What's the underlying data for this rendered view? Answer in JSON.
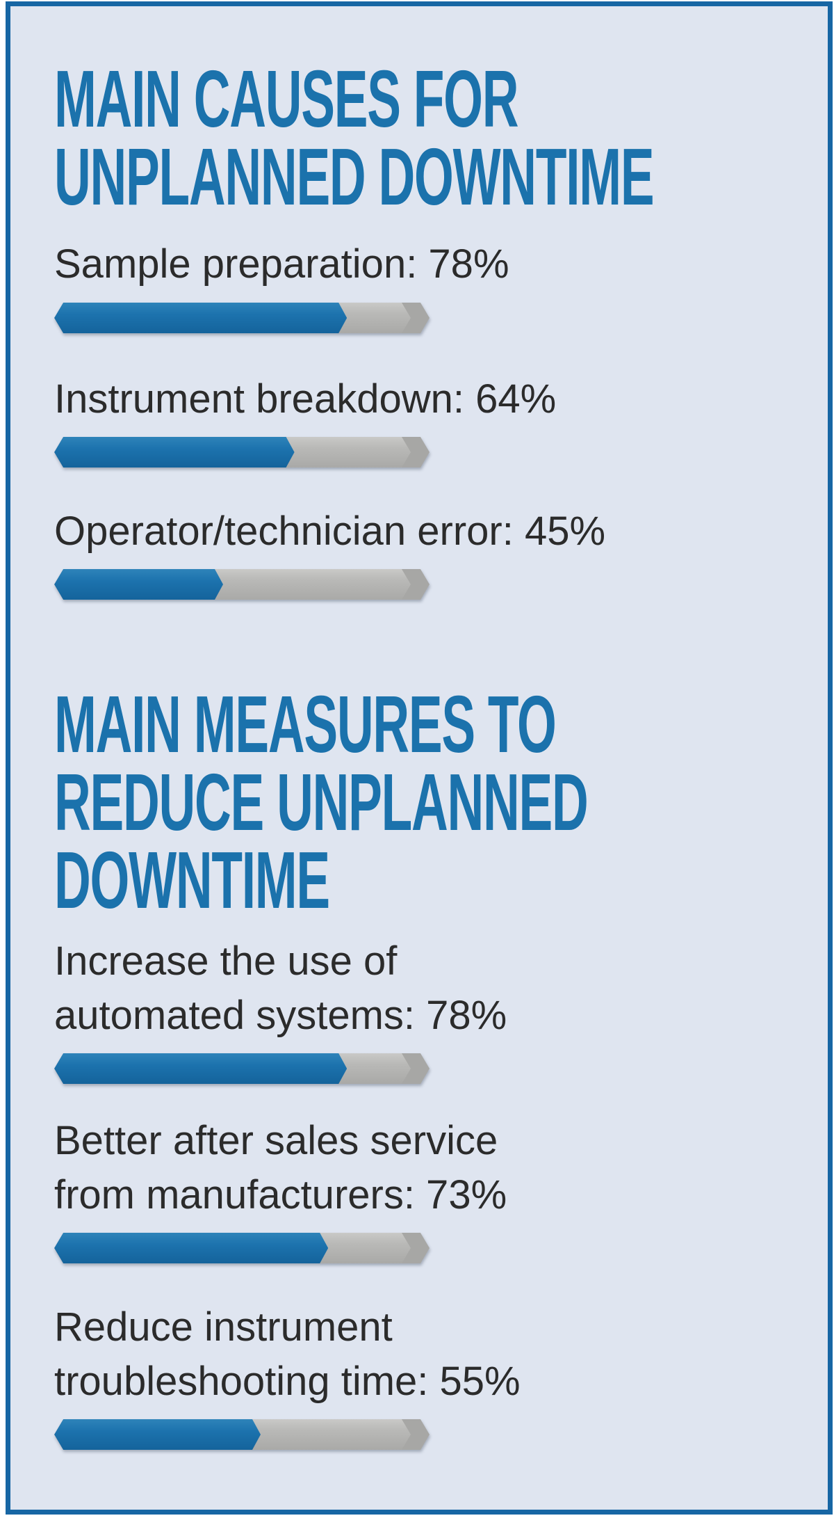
{
  "palette": {
    "brand_blue": "#1b72ac",
    "bar_blue": "#1c72ad",
    "bar_gray": "#b9b9b7",
    "bar_gray_dark": "#a7a7a5",
    "border_blue": "#1766a4",
    "background": "#dfe5f0",
    "page_margin_white": "#ffffff",
    "text_dark": "#2b2b2b"
  },
  "sections": [
    {
      "title_lines": [
        "MAIN CAUSES FOR",
        "UNPLANNED DOWNTIME"
      ],
      "items": [
        {
          "label_line1": "Sample preparation: 78%",
          "label_line2": "",
          "value_pct": 78
        },
        {
          "label_line1": "Instrument breakdown: 64%",
          "label_line2": "",
          "value_pct": 64
        },
        {
          "label_line1": "Operator/technician error: 45%",
          "label_line2": "",
          "value_pct": 45
        }
      ]
    },
    {
      "title_lines": [
        "MAIN MEASURES TO",
        "REDUCE UNPLANNED",
        "DOWNTIME"
      ],
      "items": [
        {
          "label_line1": "Increase the use of",
          "label_line2": "automated systems: 78%",
          "value_pct": 78
        },
        {
          "label_line1": "Better after sales service",
          "label_line2": "from manufacturers: 73%",
          "value_pct": 73
        },
        {
          "label_line1": "Reduce instrument",
          "label_line2": "troubleshooting time: 55%",
          "value_pct": 55
        }
      ]
    }
  ],
  "chart_data": [
    {
      "type": "bar",
      "orientation": "horizontal",
      "title": "MAIN CAUSES FOR UNPLANNED DOWNTIME",
      "categories": [
        "Sample preparation",
        "Instrument breakdown",
        "Operator/technician error"
      ],
      "values": [
        78,
        64,
        45
      ],
      "unit": "%",
      "xlabel": "",
      "ylabel": "",
      "xlim": [
        0,
        100
      ],
      "grid": false,
      "legend": false
    },
    {
      "type": "bar",
      "orientation": "horizontal",
      "title": "MAIN MEASURES TO REDUCE UNPLANNED DOWNTIME",
      "categories": [
        "Increase the use of automated systems",
        "Better after sales service from manufacturers",
        "Reduce instrument troubleshooting time"
      ],
      "values": [
        78,
        73,
        55
      ],
      "unit": "%",
      "xlabel": "",
      "ylabel": "",
      "xlim": [
        0,
        100
      ],
      "grid": false,
      "legend": false
    }
  ]
}
